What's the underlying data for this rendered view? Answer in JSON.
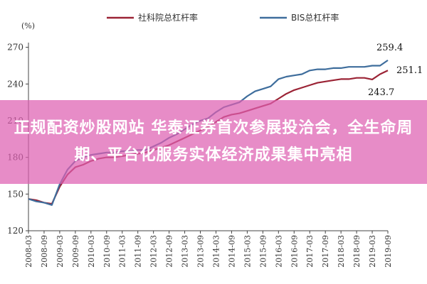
{
  "banner": {
    "headline": "正规配资炒股网站 华泰证券首次参展投洽会，全生命周期、平台化服务实体经济成果集中亮相"
  },
  "colors": {
    "series_red": "#9b2335",
    "series_blue": "#3e6d9c",
    "banner_bg": "#de60b2"
  },
  "chart_data": {
    "type": "line",
    "title": "",
    "unit_label": "(%)",
    "xlabel": "",
    "ylabel": "",
    "ylim": [
      120,
      275
    ],
    "yticks": [
      120,
      150,
      180,
      210,
      240,
      270
    ],
    "x_tick_labels": [
      "2008-03",
      "2008-09",
      "2009-03",
      "2009-09",
      "2010-03",
      "2010-09",
      "2011-03",
      "2011-09",
      "2012-03",
      "2012-09",
      "2013-03",
      "2013-09",
      "2014-03",
      "2014-09",
      "2015-03",
      "2015-09",
      "2016-03",
      "2016-09",
      "2017-03",
      "2017-09",
      "2018-03",
      "2018-09",
      "2019-03",
      "2019-09"
    ],
    "x": [
      "2008-03",
      "2008-06",
      "2008-09",
      "2008-12",
      "2009-03",
      "2009-06",
      "2009-09",
      "2009-12",
      "2010-03",
      "2010-06",
      "2010-09",
      "2010-12",
      "2011-03",
      "2011-06",
      "2011-09",
      "2011-12",
      "2012-03",
      "2012-06",
      "2012-09",
      "2012-12",
      "2013-03",
      "2013-06",
      "2013-09",
      "2013-12",
      "2014-03",
      "2014-06",
      "2014-09",
      "2014-12",
      "2015-03",
      "2015-06",
      "2015-09",
      "2015-12",
      "2016-03",
      "2016-06",
      "2016-09",
      "2016-12",
      "2017-03",
      "2017-06",
      "2017-09",
      "2017-12",
      "2018-03",
      "2018-06",
      "2018-09",
      "2018-12",
      "2019-03",
      "2019-06",
      "2019-09"
    ],
    "legend_position": "top",
    "grid": false,
    "series": [
      {
        "name": "社科院总杠杆率",
        "color": "#9b2335",
        "values": [
          146,
          145,
          143,
          142,
          156,
          166,
          172,
          174,
          177,
          179,
          180,
          180,
          181,
          182,
          183,
          184,
          186,
          188,
          190,
          193,
          196,
          199,
          202,
          205,
          209,
          213,
          215,
          216,
          218,
          220,
          222,
          224,
          228,
          232,
          235,
          237,
          239,
          241,
          242,
          243,
          244,
          244,
          245,
          245,
          243.7,
          248,
          251.1
        ]
      },
      {
        "name": "BIS总杠杆率",
        "color": "#3e6d9c",
        "values": [
          146,
          144,
          143,
          141,
          158,
          170,
          177,
          180,
          182,
          183,
          184,
          184,
          185,
          185,
          186,
          186,
          189,
          192,
          196,
          199,
          203,
          207,
          210,
          212,
          217,
          221,
          223,
          225,
          230,
          234,
          236,
          238,
          244,
          246,
          247,
          248,
          251,
          252,
          252,
          253,
          253,
          254,
          254,
          254,
          255,
          255,
          259.4
        ]
      }
    ],
    "annotations": [
      {
        "text": "259.4",
        "x": "2019-09",
        "y": 259.4
      },
      {
        "text": "251.1",
        "x": "2019-09",
        "y": 251.1
      },
      {
        "text": "243.7",
        "x": "2019-03",
        "y": 243.7
      }
    ]
  }
}
